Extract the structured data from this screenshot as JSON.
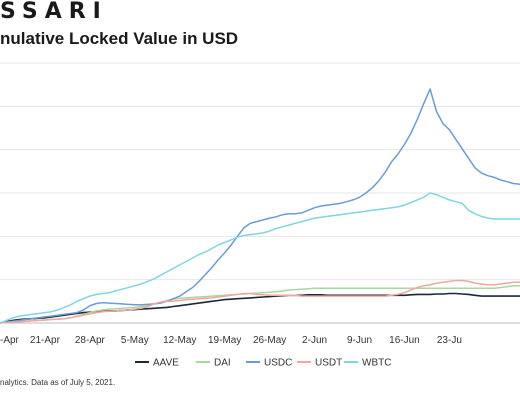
{
  "header": {
    "brand": "SSARI",
    "title": "nulative Locked Value in USD"
  },
  "footer": {
    "source": "nalytics. Data as of July 5, 2021."
  },
  "chart_data": {
    "type": "line",
    "title": "nulative Locked Value in USD",
    "xlabel": "",
    "ylabel": "",
    "x_ticks": [
      "-Apr",
      "21-Apr",
      "28-Apr",
      "5-May",
      "12-May",
      "19-May",
      "26-May",
      "2-Jun",
      "9-Jun",
      "16-Jun",
      "23-Ju"
    ],
    "grid": "horizontal",
    "legend_position": "bottom",
    "x": [
      0,
      1,
      2,
      3,
      4,
      5,
      6,
      7,
      8,
      9,
      10,
      11,
      12,
      13,
      14,
      15,
      16,
      17,
      18,
      19,
      20,
      21,
      22,
      23,
      24,
      25,
      26,
      27,
      28,
      29,
      30,
      31,
      32,
      33,
      34,
      35,
      36,
      37,
      38,
      39,
      40,
      41,
      42,
      43,
      44,
      45,
      46,
      47,
      48,
      49,
      50,
      51,
      52,
      53,
      54,
      55,
      56,
      57,
      58,
      59,
      60,
      61,
      62,
      63,
      64,
      65,
      66,
      67,
      68,
      69,
      70,
      71,
      72,
      73,
      74,
      75,
      76,
      77,
      78,
      79,
      80,
      81
    ],
    "ylim": [
      0,
      6
    ],
    "series": [
      {
        "name": "AAVE",
        "color": "#1b2838",
        "values": [
          0,
          0.03,
          0.06,
          0.08,
          0.09,
          0.1,
          0.11,
          0.12,
          0.14,
          0.16,
          0.18,
          0.2,
          0.22,
          0.24,
          0.25,
          0.26,
          0.27,
          0.28,
          0.28,
          0.29,
          0.3,
          0.31,
          0.32,
          0.33,
          0.34,
          0.35,
          0.36,
          0.38,
          0.4,
          0.42,
          0.44,
          0.46,
          0.48,
          0.5,
          0.52,
          0.54,
          0.55,
          0.56,
          0.57,
          0.58,
          0.59,
          0.6,
          0.61,
          0.62,
          0.63,
          0.64,
          0.64,
          0.64,
          0.65,
          0.65,
          0.65,
          0.64,
          0.64,
          0.64,
          0.64,
          0.64,
          0.64,
          0.64,
          0.64,
          0.64,
          0.64,
          0.64,
          0.64,
          0.64,
          0.65,
          0.66,
          0.66,
          0.66,
          0.67,
          0.67,
          0.68,
          0.68,
          0.67,
          0.66,
          0.64,
          0.62,
          0.62,
          0.62,
          0.62,
          0.62,
          0.62,
          0.62
        ]
      },
      {
        "name": "DAI",
        "color": "#a8d8a0",
        "values": [
          0,
          0.01,
          0.02,
          0.03,
          0.04,
          0.05,
          0.06,
          0.07,
          0.08,
          0.09,
          0.1,
          0.12,
          0.16,
          0.2,
          0.24,
          0.28,
          0.3,
          0.32,
          0.33,
          0.34,
          0.35,
          0.36,
          0.38,
          0.4,
          0.44,
          0.48,
          0.52,
          0.55,
          0.57,
          0.58,
          0.59,
          0.6,
          0.61,
          0.62,
          0.63,
          0.64,
          0.65,
          0.66,
          0.67,
          0.68,
          0.69,
          0.7,
          0.71,
          0.72,
          0.74,
          0.76,
          0.77,
          0.78,
          0.79,
          0.8,
          0.8,
          0.8,
          0.8,
          0.8,
          0.8,
          0.8,
          0.8,
          0.8,
          0.8,
          0.8,
          0.8,
          0.8,
          0.8,
          0.8,
          0.8,
          0.8,
          0.8,
          0.8,
          0.8,
          0.8,
          0.8,
          0.8,
          0.8,
          0.8,
          0.8,
          0.8,
          0.8,
          0.8,
          0.82,
          0.84,
          0.86,
          0.86
        ]
      },
      {
        "name": "USDC",
        "color": "#6b9bd8",
        "values": [
          0,
          0.02,
          0.04,
          0.06,
          0.08,
          0.1,
          0.12,
          0.14,
          0.16,
          0.18,
          0.2,
          0.22,
          0.24,
          0.3,
          0.4,
          0.45,
          0.47,
          0.46,
          0.45,
          0.44,
          0.43,
          0.42,
          0.42,
          0.43,
          0.44,
          0.46,
          0.5,
          0.56,
          0.62,
          0.72,
          0.82,
          0.96,
          1.12,
          1.28,
          1.46,
          1.62,
          1.8,
          2.0,
          2.2,
          2.3,
          2.34,
          2.38,
          2.42,
          2.45,
          2.5,
          2.52,
          2.52,
          2.54,
          2.6,
          2.66,
          2.7,
          2.72,
          2.74,
          2.76,
          2.8,
          2.84,
          2.9,
          3.0,
          3.12,
          3.28,
          3.48,
          3.72,
          3.9,
          4.12,
          4.38,
          4.7,
          5.06,
          5.4,
          4.88,
          4.6,
          4.46,
          4.24,
          4.02,
          3.8,
          3.58,
          3.46,
          3.4,
          3.36,
          3.3,
          3.26,
          3.22,
          3.2
        ]
      },
      {
        "name": "USDT",
        "color": "#f0a79f",
        "values": [
          0,
          0.01,
          0.02,
          0.03,
          0.04,
          0.05,
          0.06,
          0.07,
          0.08,
          0.09,
          0.1,
          0.12,
          0.15,
          0.18,
          0.21,
          0.24,
          0.26,
          0.27,
          0.28,
          0.29,
          0.3,
          0.32,
          0.34,
          0.38,
          0.44,
          0.48,
          0.5,
          0.5,
          0.52,
          0.54,
          0.55,
          0.56,
          0.57,
          0.58,
          0.6,
          0.62,
          0.64,
          0.66,
          0.68,
          0.68,
          0.66,
          0.65,
          0.64,
          0.64,
          0.64,
          0.64,
          0.64,
          0.62,
          0.62,
          0.62,
          0.62,
          0.62,
          0.62,
          0.62,
          0.62,
          0.62,
          0.62,
          0.62,
          0.62,
          0.62,
          0.62,
          0.64,
          0.66,
          0.7,
          0.76,
          0.82,
          0.86,
          0.88,
          0.92,
          0.94,
          0.96,
          0.98,
          0.98,
          0.96,
          0.92,
          0.9,
          0.88,
          0.88,
          0.9,
          0.92,
          0.94,
          0.94
        ]
      },
      {
        "name": "WBTC",
        "color": "#7fd6e0",
        "values": [
          0,
          0.06,
          0.12,
          0.16,
          0.18,
          0.2,
          0.22,
          0.24,
          0.26,
          0.3,
          0.36,
          0.42,
          0.5,
          0.56,
          0.62,
          0.66,
          0.68,
          0.7,
          0.74,
          0.78,
          0.82,
          0.86,
          0.9,
          0.96,
          1.02,
          1.1,
          1.18,
          1.26,
          1.34,
          1.42,
          1.5,
          1.58,
          1.64,
          1.72,
          1.8,
          1.86,
          1.92,
          1.98,
          2.02,
          2.04,
          2.06,
          2.08,
          2.12,
          2.18,
          2.22,
          2.26,
          2.3,
          2.34,
          2.38,
          2.42,
          2.44,
          2.46,
          2.48,
          2.5,
          2.52,
          2.54,
          2.56,
          2.58,
          2.6,
          2.62,
          2.64,
          2.66,
          2.68,
          2.72,
          2.78,
          2.84,
          2.9,
          3.0,
          2.96,
          2.9,
          2.84,
          2.8,
          2.76,
          2.6,
          2.52,
          2.46,
          2.42,
          2.4,
          2.4,
          2.4,
          2.4,
          2.4
        ]
      }
    ]
  }
}
